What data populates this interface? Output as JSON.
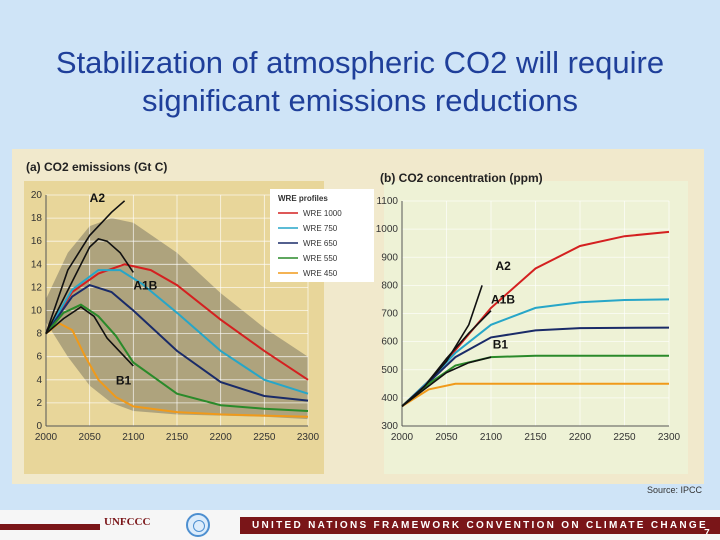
{
  "slide": {
    "title": "Stabilization of atmospheric CO2 will require significant emissions reductions",
    "source": "Source: IPCC",
    "footer_text": "UNITED NATIONS FRAMEWORK CONVENTION ON CLIMATE CHANGE",
    "unfccc_logo": "UNFCCC",
    "page_number": "7"
  },
  "colors": {
    "title": "#1f3f9a",
    "background": "#cfe4f7",
    "footer_band": "#7a1518",
    "panel_a_bg": "#e8d69a",
    "panel_b_bg": "#eef2d6",
    "uncertainty_band": "#a39a78",
    "WRE 1000": "#d42020",
    "WRE 750": "#27a6c8",
    "WRE 650": "#1a2b68",
    "WRE 550": "#2a8a2a",
    "WRE 450": "#f09a1a",
    "scenario": "#111111"
  },
  "chart_data": [
    {
      "type": "line",
      "title": "(a) CO2 emissions (Gt C)",
      "xlim": [
        2000,
        2300
      ],
      "ylim": [
        0,
        20
      ],
      "xticks": [
        2000,
        2050,
        2100,
        2150,
        2200,
        2250,
        2300
      ],
      "yticks": [
        0,
        2,
        4,
        6,
        8,
        10,
        12,
        14,
        16,
        18,
        20
      ],
      "grid": true,
      "legend": {
        "title": "WRE profiles",
        "position": "top-center"
      },
      "band": {
        "upper": [
          [
            2000,
            11
          ],
          [
            2025,
            15
          ],
          [
            2050,
            17.3
          ],
          [
            2075,
            18
          ],
          [
            2100,
            17.6
          ],
          [
            2150,
            15
          ],
          [
            2200,
            11.5
          ],
          [
            2250,
            8.5
          ],
          [
            2300,
            6
          ]
        ],
        "lower": [
          [
            2000,
            9
          ],
          [
            2025,
            6
          ],
          [
            2050,
            3.5
          ],
          [
            2075,
            2
          ],
          [
            2100,
            1.3
          ],
          [
            2150,
            1
          ],
          [
            2200,
            0.9
          ],
          [
            2250,
            0.8
          ],
          [
            2300,
            0.6
          ]
        ]
      },
      "series": [
        {
          "name": "WRE 1000",
          "points": [
            [
              2000,
              8
            ],
            [
              2030,
              11.6
            ],
            [
              2060,
              13.2
            ],
            [
              2090,
              14
            ],
            [
              2120,
              13.5
            ],
            [
              2150,
              12.2
            ],
            [
              2200,
              9.2
            ],
            [
              2250,
              6.5
            ],
            [
              2300,
              4
            ]
          ]
        },
        {
          "name": "WRE 750",
          "points": [
            [
              2000,
              8
            ],
            [
              2030,
              11.8
            ],
            [
              2060,
              13.5
            ],
            [
              2085,
              13.5
            ],
            [
              2110,
              12.3
            ],
            [
              2150,
              9.8
            ],
            [
              2200,
              6.5
            ],
            [
              2250,
              4
            ],
            [
              2300,
              2.8
            ]
          ]
        },
        {
          "name": "WRE 650",
          "points": [
            [
              2000,
              8
            ],
            [
              2030,
              11.2
            ],
            [
              2050,
              12.2
            ],
            [
              2075,
              11.6
            ],
            [
              2100,
              10
            ],
            [
              2150,
              6.5
            ],
            [
              2200,
              3.8
            ],
            [
              2250,
              2.6
            ],
            [
              2300,
              2.2
            ]
          ]
        },
        {
          "name": "WRE 550",
          "points": [
            [
              2000,
              8
            ],
            [
              2020,
              9.8
            ],
            [
              2040,
              10.5
            ],
            [
              2060,
              9.5
            ],
            [
              2080,
              7.8
            ],
            [
              2100,
              5.5
            ],
            [
              2150,
              2.8
            ],
            [
              2200,
              1.8
            ],
            [
              2250,
              1.5
            ],
            [
              2300,
              1.3
            ]
          ]
        },
        {
          "name": "WRE 450",
          "points": [
            [
              2000,
              8
            ],
            [
              2015,
              8.9
            ],
            [
              2030,
              8.3
            ],
            [
              2045,
              6
            ],
            [
              2060,
              4
            ],
            [
              2080,
              2.5
            ],
            [
              2100,
              1.7
            ],
            [
              2150,
              1.2
            ],
            [
              2200,
              1
            ],
            [
              2300,
              0.8
            ]
          ]
        },
        {
          "name": "A2",
          "points": [
            [
              2000,
              8
            ],
            [
              2025,
              13.5
            ],
            [
              2050,
              16.5
            ],
            [
              2075,
              18.5
            ],
            [
              2090,
              19.5
            ]
          ]
        },
        {
          "name": "A1B",
          "points": [
            [
              2000,
              8
            ],
            [
              2030,
              12.5
            ],
            [
              2050,
              15.5
            ],
            [
              2060,
              16.2
            ],
            [
              2070,
              16
            ],
            [
              2085,
              15
            ],
            [
              2100,
              13.3
            ]
          ]
        },
        {
          "name": "B1",
          "points": [
            [
              2000,
              8
            ],
            [
              2020,
              9.3
            ],
            [
              2040,
              10.3
            ],
            [
              2055,
              9.5
            ],
            [
              2070,
              7.6
            ],
            [
              2085,
              6.4
            ],
            [
              2100,
              5.2
            ]
          ]
        }
      ],
      "annotations": [
        {
          "text": "A2",
          "x": 2050,
          "y": 19.4
        },
        {
          "text": "A1B",
          "x": 2100,
          "y": 11.8
        },
        {
          "text": "B1",
          "x": 2080,
          "y": 3.6
        }
      ]
    },
    {
      "type": "line",
      "title": "(b) CO2 concentration (ppm)",
      "xlim": [
        2000,
        2300
      ],
      "ylim": [
        300,
        1100
      ],
      "xticks": [
        2000,
        2050,
        2100,
        2150,
        2200,
        2250,
        2300
      ],
      "yticks": [
        300,
        400,
        500,
        600,
        700,
        800,
        900,
        1000,
        1100
      ],
      "grid": true,
      "series": [
        {
          "name": "WRE 1000",
          "points": [
            [
              2000,
              370
            ],
            [
              2030,
              460
            ],
            [
              2060,
              570
            ],
            [
              2100,
              720
            ],
            [
              2150,
              860
            ],
            [
              2200,
              940
            ],
            [
              2250,
              975
            ],
            [
              2300,
              990
            ]
          ]
        },
        {
          "name": "WRE 750",
          "points": [
            [
              2000,
              370
            ],
            [
              2030,
              460
            ],
            [
              2060,
              560
            ],
            [
              2100,
              660
            ],
            [
              2150,
              720
            ],
            [
              2200,
              740
            ],
            [
              2250,
              748
            ],
            [
              2300,
              750
            ]
          ]
        },
        {
          "name": "WRE 650",
          "points": [
            [
              2000,
              370
            ],
            [
              2030,
              455
            ],
            [
              2060,
              545
            ],
            [
              2100,
              615
            ],
            [
              2150,
              640
            ],
            [
              2200,
              648
            ],
            [
              2300,
              650
            ]
          ]
        },
        {
          "name": "WRE 550",
          "points": [
            [
              2000,
              370
            ],
            [
              2030,
              450
            ],
            [
              2060,
              515
            ],
            [
              2100,
              545
            ],
            [
              2150,
              550
            ],
            [
              2300,
              550
            ]
          ]
        },
        {
          "name": "WRE 450",
          "points": [
            [
              2000,
              370
            ],
            [
              2030,
              430
            ],
            [
              2060,
              450
            ],
            [
              2100,
              450
            ],
            [
              2300,
              450
            ]
          ]
        },
        {
          "name": "A2",
          "points": [
            [
              2000,
              370
            ],
            [
              2025,
              440
            ],
            [
              2050,
              530
            ],
            [
              2075,
              660
            ],
            [
              2090,
              800
            ]
          ]
        },
        {
          "name": "A1B",
          "points": [
            [
              2000,
              370
            ],
            [
              2025,
              440
            ],
            [
              2050,
              540
            ],
            [
              2075,
              630
            ],
            [
              2100,
              710
            ]
          ]
        },
        {
          "name": "B1",
          "points": [
            [
              2000,
              370
            ],
            [
              2025,
              430
            ],
            [
              2050,
              490
            ],
            [
              2075,
              525
            ],
            [
              2100,
              545
            ]
          ]
        }
      ],
      "annotations": [
        {
          "text": "A2",
          "x": 2105,
          "y": 855
        },
        {
          "text": "A1B",
          "x": 2100,
          "y": 735
        },
        {
          "text": "B1",
          "x": 2102,
          "y": 575
        }
      ]
    }
  ]
}
